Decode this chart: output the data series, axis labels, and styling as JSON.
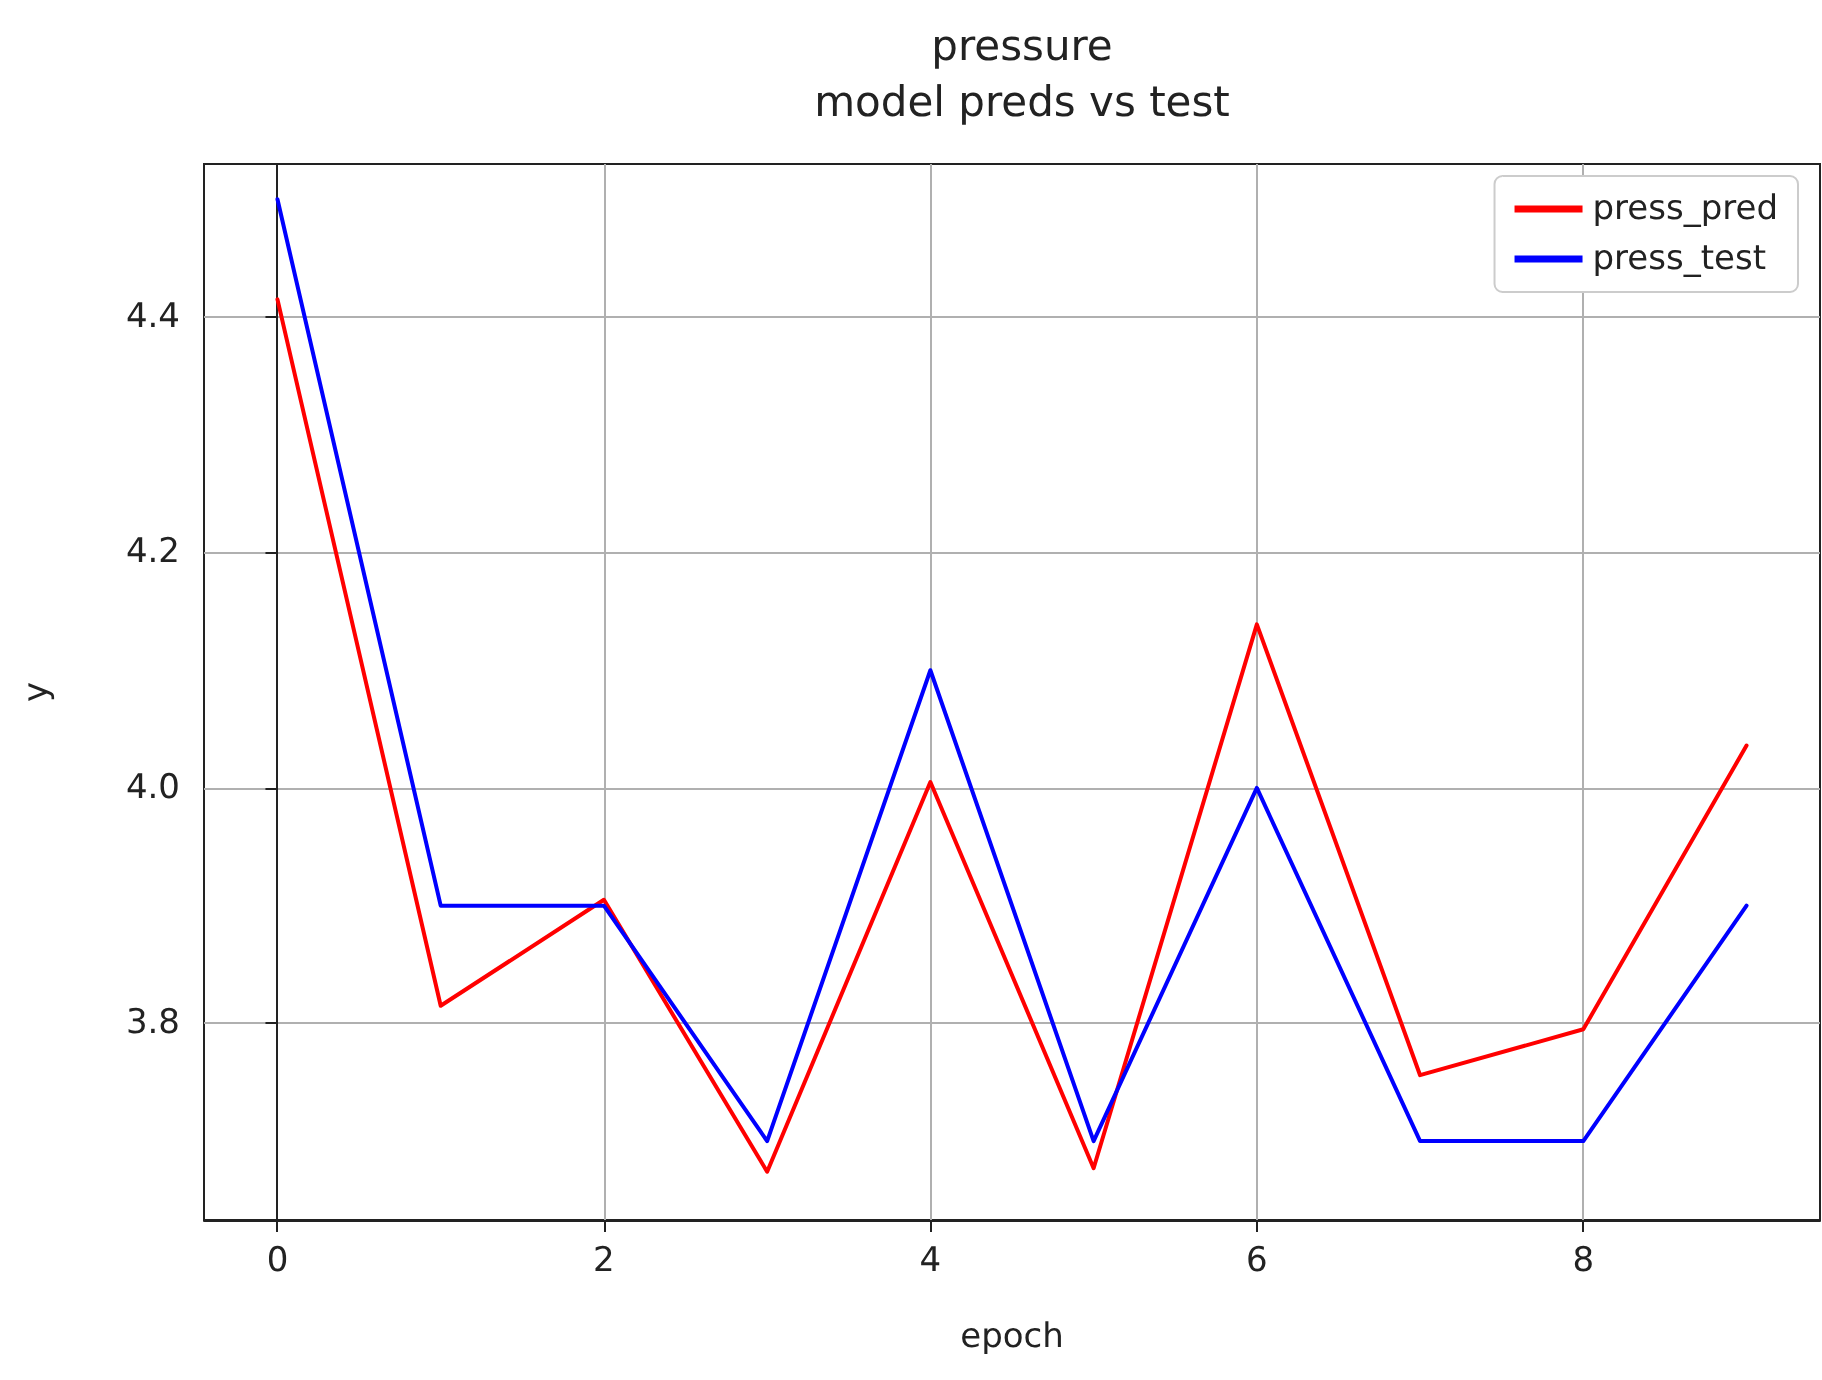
{
  "chart_data": {
    "type": "line",
    "title": "pressure\nmodel preds vs test",
    "xlabel": "epoch",
    "ylabel": "y",
    "x": [
      0,
      1,
      2,
      3,
      4,
      5,
      6,
      7,
      8,
      9
    ],
    "series": [
      {
        "name": "press_pred",
        "color": "#ff0000",
        "values": [
          4.415,
          3.815,
          3.905,
          3.674,
          4.005,
          3.677,
          4.139,
          3.756,
          3.795,
          4.036
        ]
      },
      {
        "name": "press_test",
        "color": "#0000ff",
        "values": [
          4.5,
          3.9,
          3.9,
          3.7,
          4.1,
          3.7,
          4.0,
          3.7,
          3.7,
          3.9
        ]
      }
    ],
    "xlim": [
      -0.45,
      9.45
    ],
    "xticks": [
      0,
      2,
      4,
      6,
      8
    ],
    "ylim": [
      3.633,
      4.53
    ],
    "yticks": [
      {
        "value": 3.8,
        "label": "3.8"
      },
      {
        "value": 4.0,
        "label": "4.0"
      },
      {
        "value": 4.2,
        "label": "4.2"
      },
      {
        "value": 4.4,
        "label": "4.4"
      }
    ],
    "grid": true,
    "legend": "top right",
    "marker": "none",
    "line_style": "solid"
  }
}
